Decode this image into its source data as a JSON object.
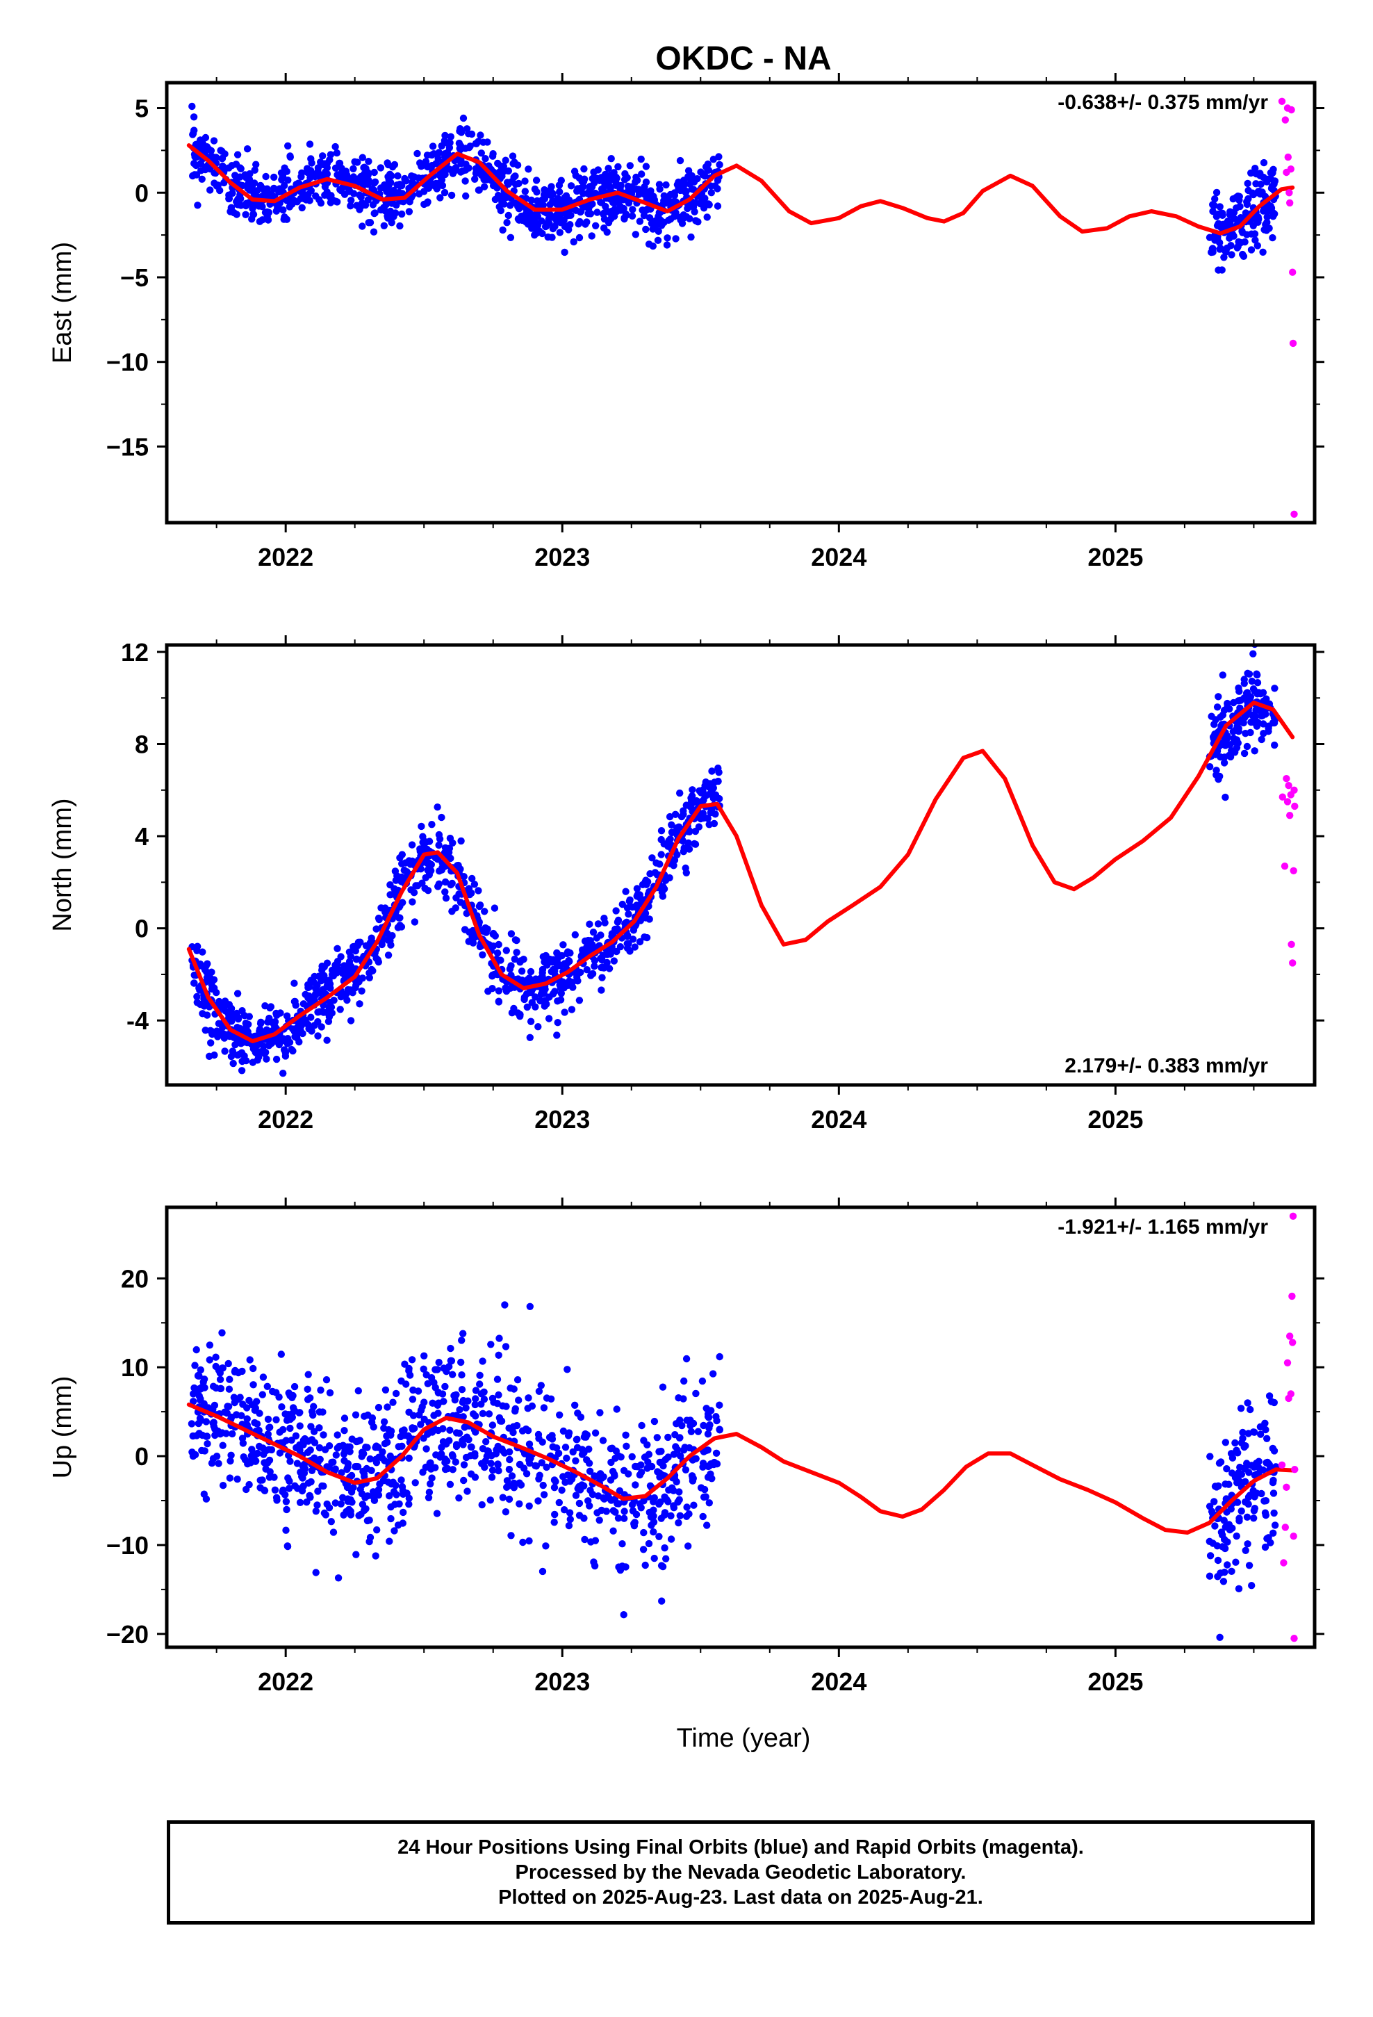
{
  "title": "OKDC - NA",
  "colors": {
    "final": "#0000ff",
    "rapid": "#ff00ff",
    "model": "#ff0000",
    "axis": "#000000"
  },
  "xlabel": "Time (year)",
  "footer": {
    "line1": "24 Hour Positions Using Final Orbits (blue) and Rapid Orbits (magenta).",
    "line2": "Processed by the Nevada Geodetic Laboratory.",
    "line3": "Plotted on 2025-Aug-23. Last data on 2025-Aug-21."
  },
  "chart_data": [
    {
      "type": "scatter",
      "id": "east",
      "ylabel": "East (mm)",
      "rate_label": "-0.638+/- 0.375 mm/yr",
      "rate_position": "top-right",
      "xlim": [
        2021.57,
        2025.72
      ],
      "ylim": [
        -19.5,
        6.5
      ],
      "xticks": [
        2022,
        2023,
        2024,
        2025
      ],
      "yticks": [
        5,
        0,
        -5,
        -10,
        -15
      ],
      "ytick_labels": [
        "5",
        "0",
        "−5",
        "−10",
        "−15"
      ],
      "model_curve": [
        [
          2021.65,
          2.8
        ],
        [
          2021.72,
          1.9
        ],
        [
          2021.8,
          0.6
        ],
        [
          2021.88,
          -0.4
        ],
        [
          2021.96,
          -0.5
        ],
        [
          2022.05,
          0.3
        ],
        [
          2022.15,
          0.8
        ],
        [
          2022.25,
          0.4
        ],
        [
          2022.35,
          -0.4
        ],
        [
          2022.43,
          -0.3
        ],
        [
          2022.52,
          1.0
        ],
        [
          2022.62,
          2.3
        ],
        [
          2022.7,
          1.8
        ],
        [
          2022.8,
          0.1
        ],
        [
          2022.9,
          -1.0
        ],
        [
          2023.0,
          -1.0
        ],
        [
          2023.1,
          -0.4
        ],
        [
          2023.2,
          0.0
        ],
        [
          2023.3,
          -0.6
        ],
        [
          2023.38,
          -1.1
        ],
        [
          2023.46,
          -0.4
        ],
        [
          2023.55,
          1.0
        ],
        [
          2023.63,
          1.6
        ],
        [
          2023.72,
          0.7
        ],
        [
          2023.82,
          -1.1
        ],
        [
          2023.9,
          -1.8
        ],
        [
          2024.0,
          -1.5
        ],
        [
          2024.08,
          -0.8
        ],
        [
          2024.15,
          -0.5
        ],
        [
          2024.23,
          -0.9
        ],
        [
          2024.32,
          -1.5
        ],
        [
          2024.38,
          -1.7
        ],
        [
          2024.45,
          -1.2
        ],
        [
          2024.52,
          0.1
        ],
        [
          2024.62,
          1.0
        ],
        [
          2024.7,
          0.4
        ],
        [
          2024.8,
          -1.4
        ],
        [
          2024.88,
          -2.3
        ],
        [
          2024.97,
          -2.1
        ],
        [
          2025.05,
          -1.4
        ],
        [
          2025.13,
          -1.1
        ],
        [
          2025.22,
          -1.4
        ],
        [
          2025.3,
          -2.0
        ],
        [
          2025.38,
          -2.4
        ],
        [
          2025.45,
          -2.0
        ],
        [
          2025.52,
          -0.8
        ],
        [
          2025.6,
          0.2
        ],
        [
          2025.64,
          0.3
        ]
      ],
      "final_segments": [
        {
          "t_start": 2021.66,
          "t_end": 2023.57,
          "count": 1100,
          "scatter": 0.9
        },
        {
          "t_start": 2025.34,
          "t_end": 2025.58,
          "count": 160,
          "scatter": 1.1
        }
      ],
      "rapid_points": [
        [
          2025.602,
          5.4
        ],
        [
          2025.614,
          4.3
        ],
        [
          2025.618,
          1.2
        ],
        [
          2025.622,
          5.0
        ],
        [
          2025.624,
          2.1
        ],
        [
          2025.628,
          0.0
        ],
        [
          2025.63,
          -0.6
        ],
        [
          2025.634,
          1.4
        ],
        [
          2025.636,
          4.9
        ],
        [
          2025.64,
          -4.7
        ],
        [
          2025.642,
          -8.9
        ],
        [
          2025.646,
          -19.0
        ]
      ]
    },
    {
      "type": "scatter",
      "id": "north",
      "ylabel": "North (mm)",
      "rate_label": "2.179+/- 0.383 mm/yr",
      "rate_position": "bottom-right",
      "xlim": [
        2021.57,
        2025.72
      ],
      "ylim": [
        -6.8,
        12.3
      ],
      "xticks": [
        2022,
        2023,
        2024,
        2025
      ],
      "yticks": [
        12,
        8,
        4,
        0,
        -4
      ],
      "ytick_labels": [
        "12",
        "8",
        "4",
        "0",
        "-4"
      ],
      "model_curve": [
        [
          2021.65,
          -0.9
        ],
        [
          2021.72,
          -3.0
        ],
        [
          2021.8,
          -4.4
        ],
        [
          2021.88,
          -4.9
        ],
        [
          2021.96,
          -4.6
        ],
        [
          2022.05,
          -3.8
        ],
        [
          2022.15,
          -3.0
        ],
        [
          2022.25,
          -2.1
        ],
        [
          2022.33,
          -0.6
        ],
        [
          2022.42,
          1.6
        ],
        [
          2022.5,
          3.2
        ],
        [
          2022.55,
          3.3
        ],
        [
          2022.62,
          2.4
        ],
        [
          2022.7,
          -0.3
        ],
        [
          2022.78,
          -2.0
        ],
        [
          2022.86,
          -2.6
        ],
        [
          2022.94,
          -2.4
        ],
        [
          2023.02,
          -1.9
        ],
        [
          2023.1,
          -1.2
        ],
        [
          2023.18,
          -0.6
        ],
        [
          2023.26,
          0.3
        ],
        [
          2023.34,
          1.8
        ],
        [
          2023.42,
          3.9
        ],
        [
          2023.5,
          5.3
        ],
        [
          2023.56,
          5.4
        ],
        [
          2023.63,
          4.0
        ],
        [
          2023.72,
          1.0
        ],
        [
          2023.8,
          -0.7
        ],
        [
          2023.88,
          -0.5
        ],
        [
          2023.96,
          0.3
        ],
        [
          2024.05,
          1.0
        ],
        [
          2024.15,
          1.8
        ],
        [
          2024.25,
          3.2
        ],
        [
          2024.35,
          5.6
        ],
        [
          2024.45,
          7.4
        ],
        [
          2024.52,
          7.7
        ],
        [
          2024.6,
          6.5
        ],
        [
          2024.7,
          3.6
        ],
        [
          2024.78,
          2.0
        ],
        [
          2024.85,
          1.7
        ],
        [
          2024.92,
          2.2
        ],
        [
          2025.0,
          3.0
        ],
        [
          2025.1,
          3.8
        ],
        [
          2025.2,
          4.8
        ],
        [
          2025.3,
          6.6
        ],
        [
          2025.4,
          8.8
        ],
        [
          2025.5,
          9.8
        ],
        [
          2025.57,
          9.5
        ],
        [
          2025.64,
          8.3
        ]
      ],
      "final_segments": [
        {
          "t_start": 2021.66,
          "t_end": 2023.57,
          "count": 1100,
          "scatter": 0.75
        },
        {
          "t_start": 2025.34,
          "t_end": 2025.58,
          "count": 160,
          "scatter": 0.9
        }
      ],
      "rapid_points": [
        [
          2025.604,
          5.7
        ],
        [
          2025.612,
          2.7
        ],
        [
          2025.618,
          6.5
        ],
        [
          2025.622,
          5.5
        ],
        [
          2025.626,
          6.2
        ],
        [
          2025.63,
          4.9
        ],
        [
          2025.634,
          5.8
        ],
        [
          2025.636,
          -0.7
        ],
        [
          2025.64,
          -1.5
        ],
        [
          2025.644,
          2.5
        ],
        [
          2025.646,
          6.0
        ],
        [
          2025.648,
          5.3
        ]
      ]
    },
    {
      "type": "scatter",
      "id": "up",
      "ylabel": "Up (mm)",
      "rate_label": "-1.921+/- 1.165 mm/yr",
      "rate_position": "top-right",
      "xlim": [
        2021.57,
        2025.72
      ],
      "ylim": [
        -21.5,
        28.0
      ],
      "xticks": [
        2022,
        2023,
        2024,
        2025
      ],
      "yticks": [
        20,
        10,
        0,
        -10,
        -20
      ],
      "ytick_labels": [
        "20",
        "10",
        "0",
        "−10",
        "−20"
      ],
      "model_curve": [
        [
          2021.65,
          5.8
        ],
        [
          2021.75,
          4.5
        ],
        [
          2021.85,
          3.0
        ],
        [
          2021.95,
          1.5
        ],
        [
          2022.05,
          0.0
        ],
        [
          2022.15,
          -1.8
        ],
        [
          2022.25,
          -3.0
        ],
        [
          2022.33,
          -2.5
        ],
        [
          2022.42,
          0.0
        ],
        [
          2022.5,
          3.0
        ],
        [
          2022.58,
          4.3
        ],
        [
          2022.66,
          3.8
        ],
        [
          2022.75,
          2.2
        ],
        [
          2022.85,
          1.0
        ],
        [
          2022.95,
          -0.3
        ],
        [
          2023.05,
          -1.8
        ],
        [
          2023.15,
          -3.5
        ],
        [
          2023.22,
          -4.8
        ],
        [
          2023.3,
          -4.5
        ],
        [
          2023.38,
          -2.5
        ],
        [
          2023.46,
          0.0
        ],
        [
          2023.55,
          2.0
        ],
        [
          2023.63,
          2.5
        ],
        [
          2023.72,
          1.0
        ],
        [
          2023.8,
          -0.6
        ],
        [
          2023.9,
          -1.8
        ],
        [
          2024.0,
          -3.0
        ],
        [
          2024.08,
          -4.6
        ],
        [
          2024.15,
          -6.2
        ],
        [
          2024.23,
          -6.8
        ],
        [
          2024.3,
          -6.0
        ],
        [
          2024.38,
          -3.8
        ],
        [
          2024.46,
          -1.2
        ],
        [
          2024.54,
          0.3
        ],
        [
          2024.62,
          0.3
        ],
        [
          2024.7,
          -1.0
        ],
        [
          2024.8,
          -2.6
        ],
        [
          2024.9,
          -3.8
        ],
        [
          2025.0,
          -5.2
        ],
        [
          2025.1,
          -7.0
        ],
        [
          2025.18,
          -8.3
        ],
        [
          2025.26,
          -8.6
        ],
        [
          2025.34,
          -7.5
        ],
        [
          2025.42,
          -5.0
        ],
        [
          2025.5,
          -2.8
        ],
        [
          2025.58,
          -1.5
        ],
        [
          2025.64,
          -1.6
        ]
      ],
      "final_segments": [
        {
          "t_start": 2021.66,
          "t_end": 2023.57,
          "count": 1050,
          "scatter": 4.3
        },
        {
          "t_start": 2025.34,
          "t_end": 2025.58,
          "count": 150,
          "scatter": 4.5
        }
      ],
      "rapid_points": [
        [
          2025.602,
          -1.0
        ],
        [
          2025.608,
          -12.0
        ],
        [
          2025.614,
          -8.0
        ],
        [
          2025.618,
          -3.5
        ],
        [
          2025.622,
          10.5
        ],
        [
          2025.626,
          6.5
        ],
        [
          2025.63,
          13.5
        ],
        [
          2025.634,
          7.0
        ],
        [
          2025.638,
          18.0
        ],
        [
          2025.64,
          12.8
        ],
        [
          2025.642,
          27.0
        ],
        [
          2025.644,
          -9.0
        ],
        [
          2025.646,
          -20.5
        ],
        [
          2025.648,
          -1.5
        ]
      ]
    }
  ]
}
